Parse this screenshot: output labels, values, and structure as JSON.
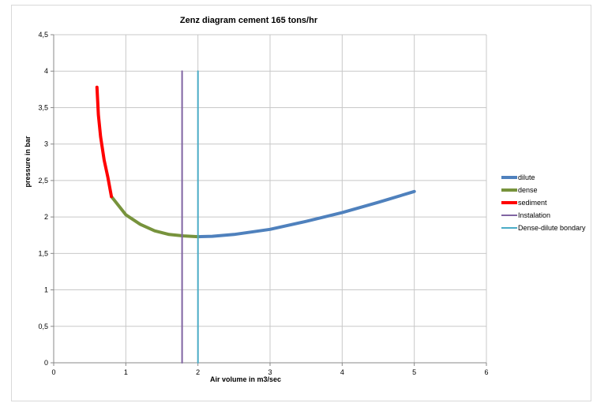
{
  "chart_data": {
    "type": "line",
    "title": "Zenz diagram cement 165 tons/hr",
    "xlabel": "Air volume in m3/sec",
    "ylabel": "pressure in bar",
    "xlim": [
      0,
      6
    ],
    "ylim": [
      0,
      4.5
    ],
    "xticks": [
      0,
      1,
      2,
      3,
      4,
      5,
      6
    ],
    "xtick_labels": [
      "0",
      "1",
      "2",
      "3",
      "4",
      "5",
      "6"
    ],
    "yticks": [
      0,
      0.5,
      1,
      1.5,
      2,
      2.5,
      3,
      3.5,
      4,
      4.5
    ],
    "ytick_labels": [
      "0",
      "0,5",
      "1",
      "1,5",
      "2",
      "2,5",
      "3",
      "3,5",
      "4",
      "4,5"
    ],
    "grid": true,
    "legend_position": "right",
    "series": [
      {
        "name": "dilute",
        "color": "#4f81bd",
        "x": [
          2.0,
          2.2,
          2.5,
          3.0,
          3.5,
          4.0,
          4.5,
          5.0
        ],
        "y": [
          1.73,
          1.735,
          1.76,
          1.83,
          1.94,
          2.06,
          2.2,
          2.35
        ]
      },
      {
        "name": "dense",
        "color": "#77933c",
        "x": [
          0.8,
          1.0,
          1.2,
          1.4,
          1.6,
          1.8,
          2.0
        ],
        "y": [
          2.28,
          2.03,
          1.9,
          1.81,
          1.76,
          1.74,
          1.73
        ]
      },
      {
        "name": "sediment",
        "color": "#ff0000",
        "x": [
          0.6,
          0.62,
          0.65,
          0.7,
          0.75,
          0.8
        ],
        "y": [
          3.78,
          3.4,
          3.1,
          2.78,
          2.55,
          2.28
        ]
      },
      {
        "name": "Instalation",
        "color": "#8064a2",
        "x": [
          1.78,
          1.78
        ],
        "y": [
          0,
          4
        ]
      },
      {
        "name": "Dense-dilute bondary",
        "color": "#4bacc6",
        "x": [
          2.0,
          2.0
        ],
        "y": [
          0,
          4
        ]
      }
    ]
  }
}
